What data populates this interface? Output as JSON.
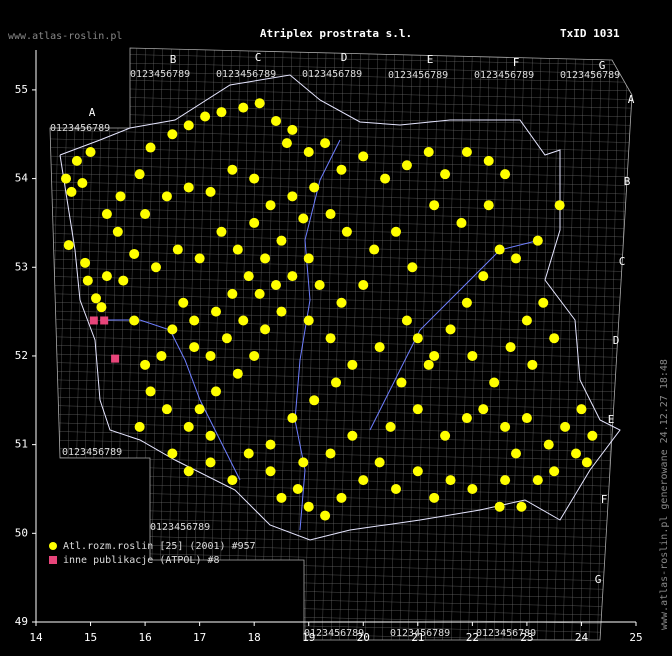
{
  "header": {
    "site": "www.atlas-roslin.pl",
    "title": "Atriplex prostrata s.l.",
    "txid": "TxID 1031"
  },
  "atpol": {
    "columns": [
      "A",
      "B",
      "C",
      "D",
      "E",
      "F",
      "G"
    ],
    "rows": [
      "A",
      "B",
      "C",
      "D",
      "E",
      "F",
      "G"
    ],
    "digits": "0123456789"
  },
  "footer": "www.atlas-roslin.pl generowane 24.12.27 18:48",
  "chart_data": {
    "type": "scatter",
    "xlim": [
      14,
      25
    ],
    "ylim": [
      49,
      55.45
    ],
    "xticks": [
      14,
      15,
      16,
      17,
      18,
      19,
      20,
      21,
      22,
      23,
      24,
      25
    ],
    "yticks": [
      49,
      50,
      51,
      52,
      53,
      54,
      55
    ],
    "series": [
      {
        "name": "Atl.rozm.roslin [25] (2001) #957",
        "color": "#ffff00",
        "x": [
          14.55,
          14.75,
          14.65,
          14.85,
          15.0,
          14.6,
          14.9,
          14.95,
          15.1,
          15.3,
          15.2,
          15.6,
          15.8,
          15.5,
          15.3,
          15.55,
          15.9,
          16.1,
          16.5,
          16.8,
          17.1,
          17.4,
          17.8,
          18.1,
          18.4,
          18.6,
          18.7,
          19.0,
          19.3,
          19.6,
          20.0,
          20.4,
          20.8,
          21.2,
          21.5,
          21.9,
          22.3,
          22.6,
          16.0,
          16.4,
          16.8,
          17.2,
          17.6,
          18.0,
          18.3,
          18.7,
          19.1,
          19.4,
          18.9,
          18.5,
          18.2,
          17.9,
          18.1,
          18.4,
          18.7,
          19.0,
          19.2,
          17.6,
          17.3,
          16.9,
          16.7,
          16.5,
          16.9,
          17.2,
          17.5,
          17.8,
          18.2,
          18.5,
          18.0,
          17.7,
          17.3,
          17.0,
          16.8,
          17.2,
          16.4,
          16.1,
          16.0,
          16.3,
          15.8,
          15.9,
          16.5,
          16.8,
          17.2,
          17.6,
          17.9,
          18.3,
          18.7,
          19.1,
          19.5,
          19.8,
          19.4,
          19.0,
          19.6,
          20.0,
          20.2,
          20.6,
          20.9,
          21.0,
          20.8,
          21.3,
          21.6,
          21.9,
          22.2,
          22.5,
          22.8,
          23.2,
          23.3,
          23.0,
          22.7,
          23.1,
          23.5,
          22.4,
          22.2,
          22.6,
          23.0,
          23.4,
          23.7,
          24.0,
          23.9,
          23.5,
          23.2,
          22.8,
          22.6,
          22.9,
          22.5,
          22.0,
          21.6,
          21.3,
          21.0,
          20.6,
          20.3,
          20.0,
          19.6,
          19.3,
          19.0,
          18.8,
          18.5,
          18.3,
          18.9,
          19.4,
          19.8,
          20.5,
          21.0,
          21.5,
          21.9,
          20.7,
          21.2,
          20.3,
          17.7,
          17.4,
          17.0,
          16.6,
          16.2,
          18.0,
          19.7,
          21.3,
          21.8,
          22.3,
          23.6,
          22.0,
          24.1,
          24.2
        ],
        "y": [
          54.0,
          54.2,
          53.85,
          53.95,
          54.3,
          53.25,
          53.05,
          52.85,
          52.65,
          52.9,
          52.55,
          52.85,
          53.15,
          53.4,
          53.6,
          53.8,
          54.05,
          54.35,
          54.5,
          54.6,
          54.7,
          54.75,
          54.8,
          54.85,
          54.65,
          54.4,
          54.55,
          54.3,
          54.4,
          54.1,
          54.25,
          54.0,
          54.15,
          54.3,
          54.05,
          54.3,
          54.2,
          54.05,
          53.6,
          53.8,
          53.9,
          53.85,
          54.1,
          54.0,
          53.7,
          53.8,
          53.9,
          53.6,
          53.55,
          53.3,
          53.1,
          52.9,
          52.7,
          52.8,
          52.9,
          53.1,
          52.8,
          52.7,
          52.5,
          52.4,
          52.6,
          52.3,
          52.1,
          52.0,
          52.2,
          52.4,
          52.3,
          52.5,
          52.0,
          51.8,
          51.6,
          51.4,
          51.2,
          51.1,
          51.4,
          51.6,
          51.9,
          52.0,
          52.4,
          51.2,
          50.9,
          50.7,
          50.8,
          50.6,
          50.9,
          51.0,
          51.3,
          51.5,
          51.7,
          51.9,
          52.2,
          52.4,
          52.6,
          52.8,
          53.2,
          53.4,
          53.0,
          52.2,
          52.4,
          52.0,
          52.3,
          52.6,
          52.9,
          53.2,
          53.1,
          53.3,
          52.6,
          52.4,
          52.1,
          51.9,
          52.2,
          51.7,
          51.4,
          51.2,
          51.3,
          51.0,
          51.2,
          51.4,
          50.9,
          50.7,
          50.6,
          50.9,
          50.6,
          50.3,
          50.3,
          50.5,
          50.6,
          50.4,
          50.7,
          50.5,
          50.8,
          50.6,
          50.4,
          50.2,
          50.3,
          50.5,
          50.4,
          50.7,
          50.8,
          50.9,
          51.1,
          51.2,
          51.4,
          51.1,
          51.3,
          51.7,
          51.9,
          52.1,
          53.2,
          53.4,
          53.1,
          53.2,
          53.0,
          53.5,
          53.4,
          53.7,
          53.5,
          53.7,
          53.7,
          52.0,
          50.8,
          51.1
        ]
      },
      {
        "name": "inne publikacje (ATPOL) #8",
        "color": "#e8457a",
        "x": [
          15.06,
          15.25,
          15.45
        ],
        "y": [
          52.4,
          52.4,
          51.97
        ]
      }
    ]
  }
}
